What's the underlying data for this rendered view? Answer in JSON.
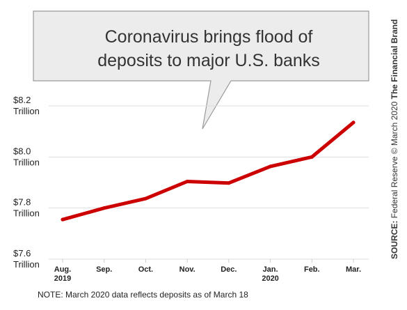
{
  "chart_data": {
    "type": "line",
    "title": "Coronavirus brings flood of deposits to major U.S. banks",
    "categories": [
      {
        "line1": "Aug.",
        "line2": "2019"
      },
      {
        "line1": "Sep.",
        "line2": ""
      },
      {
        "line1": "Oct.",
        "line2": ""
      },
      {
        "line1": "Nov.",
        "line2": ""
      },
      {
        "line1": "Dec.",
        "line2": ""
      },
      {
        "line1": "Jan.",
        "line2": "2020"
      },
      {
        "line1": "Feb.",
        "line2": ""
      },
      {
        "line1": "Mar.",
        "line2": ""
      }
    ],
    "series": [
      {
        "values": [
          7.755,
          7.8,
          7.837,
          7.904,
          7.898,
          7.963,
          8.0,
          8.135
        ],
        "color": "#cc0000"
      }
    ],
    "ylim": [
      7.6,
      8.2
    ],
    "yticks": [
      {
        "value": 8.2,
        "label": "$8.2",
        "unit": "Trillion"
      },
      {
        "value": 8.0,
        "label": "$8.0",
        "unit": "Trillion"
      },
      {
        "value": 7.8,
        "label": "$7.8",
        "unit": "Trillion"
      },
      {
        "value": 7.6,
        "label": "$7.6",
        "unit": "Trillion"
      }
    ],
    "grid": true,
    "note": "NOTE: March 2020 data reflects deposits as of March 18",
    "source_label": "SOURCE:",
    "source_text": "Federal Reserve © March 2020",
    "brand": "The Financial Brand"
  }
}
